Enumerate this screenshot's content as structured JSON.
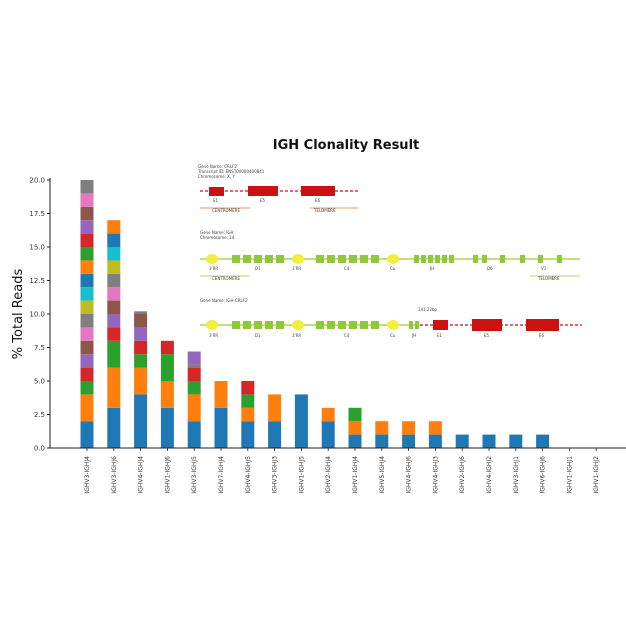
{
  "chart_data": {
    "type": "bar",
    "stacked": true,
    "title": "IGH Clonality Result",
    "xlabel": "",
    "ylabel": "% Total Reads",
    "ylim": [
      0,
      20
    ],
    "yticks": [
      "0.0",
      "2.5",
      "5.0",
      "7.5",
      "10.0",
      "12.5",
      "15.0",
      "17.5",
      "20.0"
    ],
    "categories": [
      "IGHV3-IGHJ4",
      "IGHV3-IGHJ6",
      "IGHV4-IGHJ4",
      "IGHV1-IGHJ6",
      "IGHV3-IGHJ5",
      "IGHV7-IGHJ4",
      "IGHV4-IGHJ5",
      "IGHV3-IGHJ3",
      "IGHV1-IGHJ5",
      "IGHV2-IGHJ4",
      "IGHV1-IGHJ4",
      "IGHV5-IGHJ4",
      "IGHV4-IGHJ6",
      "IGHV4-IGHJ3",
      "IGHV2-IGHJ6",
      "IGHV4-IGHJ2",
      "IGHV3-IGHJ1",
      "IGHV6-IGHJ6",
      "IGHV1-IGHJ1",
      "IGHV1-IGHJ2"
    ],
    "segment_colors": [
      "#1f77b4",
      "#ff7f0e",
      "#2ca02c",
      "#d62728",
      "#9467bd",
      "#8c564b",
      "#e377c2",
      "#7f7f7f",
      "#bcbd22",
      "#17becf"
    ],
    "stacks": [
      [
        2.0,
        2.0,
        1.0,
        1.0,
        1.0,
        1.0,
        1.0,
        1.0,
        1.0,
        1.0,
        1.0,
        1.0,
        1.0,
        1.0,
        1.0,
        1.0,
        1.0,
        1.0
      ],
      [
        3.0,
        3.0,
        2.0,
        1.0,
        1.0,
        1.0,
        1.0,
        1.0,
        1.0,
        1.0,
        1.0,
        1.0
      ],
      [
        4.0,
        2.0,
        1.0,
        1.0,
        1.0,
        1.0,
        0.2
      ],
      [
        3.0,
        2.0,
        2.0,
        1.0
      ],
      [
        2.0,
        2.0,
        1.0,
        1.0,
        0.2,
        1.0
      ],
      [
        3.0,
        2.0
      ],
      [
        2.0,
        1.0,
        1.0,
        1.0
      ],
      [
        2.0,
        2.0
      ],
      [
        4.0
      ],
      [
        2.0,
        1.0
      ],
      [
        1.0,
        1.0,
        1.0
      ],
      [
        1.0,
        1.0
      ],
      [
        1.0,
        1.0
      ],
      [
        1.0,
        1.0
      ],
      [
        1.0
      ],
      [
        1.0
      ],
      [
        1.0
      ],
      [
        1.0
      ],
      [],
      []
    ],
    "stack_color_index": [
      [
        0,
        1,
        2,
        3,
        4,
        5,
        6,
        7,
        8,
        9,
        0,
        1,
        2,
        3,
        4,
        5,
        6,
        7
      ],
      [
        0,
        1,
        2,
        3,
        4,
        5,
        6,
        7,
        8,
        9,
        0,
        1
      ],
      [
        0,
        1,
        2,
        3,
        4,
        5,
        7
      ],
      [
        0,
        1,
        2,
        3
      ],
      [
        0,
        1,
        2,
        3,
        7,
        4
      ],
      [
        0,
        1
      ],
      [
        0,
        1,
        2,
        3
      ],
      [
        0,
        1
      ],
      [
        0
      ],
      [
        0,
        1
      ],
      [
        0,
        1,
        2
      ],
      [
        0,
        1
      ],
      [
        0,
        1
      ],
      [
        0,
        1
      ],
      [
        0
      ],
      [
        0
      ],
      [
        0
      ],
      [
        0
      ],
      [],
      []
    ]
  },
  "inset": {
    "gene1": {
      "header": [
        "Gene Name: CRLF2",
        "Transcript ID: ENST00000400841",
        "Chromosome: X, Y"
      ],
      "exons": [
        "E1",
        "E5",
        "E6"
      ],
      "left": "CENTROMERE",
      "right": "TELOMERE"
    },
    "gene2": {
      "header": [
        "Gene Name: IGH",
        "Chromosome: 14"
      ],
      "labels": [
        "3'RR",
        "D1",
        "3'RR",
        "C4",
        "Cu",
        "JH",
        "D6",
        "V1"
      ],
      "left": "CENTROMERE",
      "right": "TELOMERE"
    },
    "gene3": {
      "header": [
        "Gene Name: IGH-CRLF2"
      ],
      "labels": [
        "3'RR",
        "D1",
        "3'RR",
        "C4",
        "Cu",
        "JH",
        "E1",
        "E5",
        "E6"
      ],
      "junction": "141.22bp"
    }
  },
  "colors": {
    "axis": "#222222",
    "exon": "#cc1111",
    "igh_block": "#8fc93a",
    "igh_line": "#9acd32",
    "enhancer": "#f2ee3a",
    "arrow": "#e07020"
  }
}
